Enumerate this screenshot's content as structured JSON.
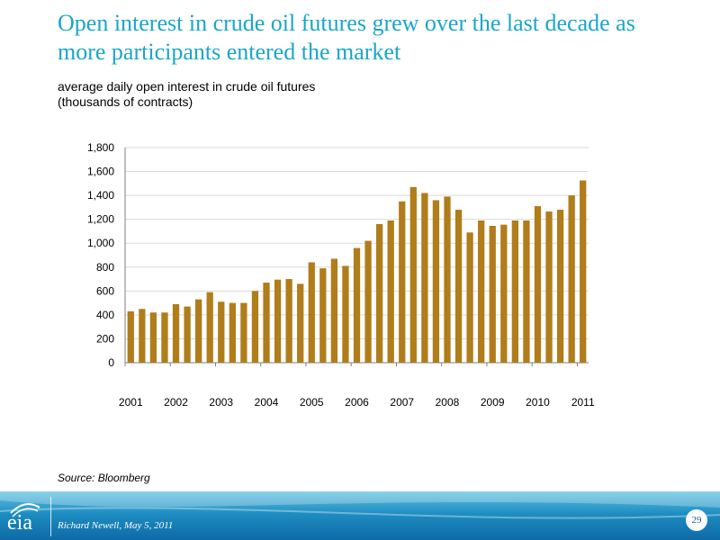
{
  "slide": {
    "title": "Open interest in crude oil futures grew over the last decade as more participants entered the market",
    "subtitle_line1": "average daily open interest in crude oil futures",
    "subtitle_line2": "(thousands of contracts)",
    "source": "Source: Bloomberg",
    "footer_author": "Richard Newell, May 5, 2011",
    "page_number": "29",
    "logo_text": "eia"
  },
  "colors": {
    "title": "#1aa6c9",
    "bar": "#b07d1a",
    "grid": "#d9d9d9",
    "footer": "#1f8ec2"
  },
  "chart_data": {
    "type": "bar",
    "title": "",
    "xlabel": "",
    "ylabel": "",
    "ylim": [
      0,
      1800
    ],
    "yticks": [
      0,
      200,
      400,
      600,
      800,
      1000,
      1200,
      1400,
      1600,
      1800
    ],
    "ytick_labels": [
      "0",
      "200",
      "400",
      "600",
      "800",
      "1,000",
      "1,200",
      "1,400",
      "1,600",
      "1,800"
    ],
    "xtick_labels": [
      "2001",
      "2002",
      "2003",
      "2004",
      "2005",
      "2006",
      "2007",
      "2008",
      "2009",
      "2010",
      "2011"
    ],
    "grid": true,
    "legend": "none",
    "categories": [
      "2001 Q1",
      "2001 Q2",
      "2001 Q3",
      "2001 Q4",
      "2002 Q1",
      "2002 Q2",
      "2002 Q3",
      "2002 Q4",
      "2003 Q1",
      "2003 Q2",
      "2003 Q3",
      "2003 Q4",
      "2004 Q1",
      "2004 Q2",
      "2004 Q3",
      "2004 Q4",
      "2005 Q1",
      "2005 Q2",
      "2005 Q3",
      "2005 Q4",
      "2006 Q1",
      "2006 Q2",
      "2006 Q3",
      "2006 Q4",
      "2007 Q1",
      "2007 Q2",
      "2007 Q3",
      "2007 Q4",
      "2008 Q1",
      "2008 Q2",
      "2008 Q3",
      "2008 Q4",
      "2009 Q1",
      "2009 Q2",
      "2009 Q3",
      "2009 Q4",
      "2010 Q1",
      "2010 Q2",
      "2010 Q3",
      "2010 Q4",
      "2011 Q1"
    ],
    "values": [
      430,
      450,
      420,
      420,
      490,
      470,
      530,
      590,
      510,
      500,
      500,
      600,
      670,
      695,
      700,
      660,
      840,
      790,
      870,
      810,
      960,
      1020,
      1160,
      1190,
      1350,
      1470,
      1420,
      1360,
      1390,
      1280,
      1090,
      1190,
      1145,
      1155,
      1190,
      1190,
      1310,
      1265,
      1280,
      1400,
      1525
    ]
  }
}
